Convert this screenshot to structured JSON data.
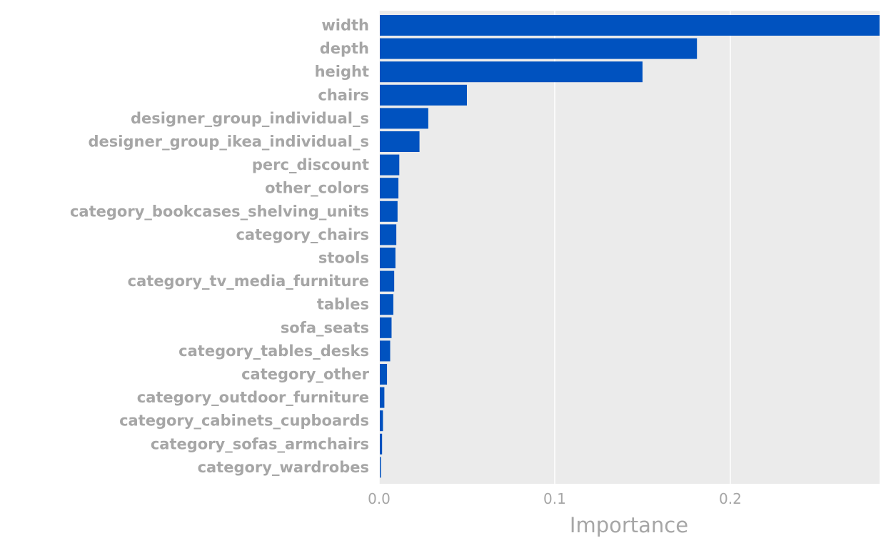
{
  "chart_data": {
    "type": "bar",
    "orientation": "horizontal",
    "xlabel": "Importance",
    "ylabel": "",
    "xlim": [
      0,
      0.285
    ],
    "xticks": [
      {
        "value": 0,
        "label": "0.0"
      },
      {
        "value": 0.1,
        "label": "0.1"
      },
      {
        "value": 0.2,
        "label": "0.2"
      }
    ],
    "grid": true,
    "categories": [
      "width",
      "depth",
      "height",
      "chairs",
      "designer_group_individual_s",
      "designer_group_ikea_individual_s",
      "perc_discount",
      "other_colors",
      "category_bookcases_shelving_units",
      "category_chairs",
      "stools",
      "category_tv_media_furniture",
      "tables",
      "sofa_seats",
      "category_tables_desks",
      "category_other",
      "category_outdoor_furniture",
      "category_cabinets_cupboards",
      "category_sofas_armchairs",
      "category_wardrobes"
    ],
    "values": [
      0.285,
      0.181,
      0.15,
      0.05,
      0.028,
      0.023,
      0.0115,
      0.011,
      0.0105,
      0.0098,
      0.0093,
      0.0086,
      0.0081,
      0.0071,
      0.0063,
      0.0045,
      0.003,
      0.0022,
      0.0017,
      0.0005
    ]
  },
  "colors": {
    "bar": "#0052bf",
    "plot_background": "#ebebeb",
    "gridline": "#ffffff",
    "text": "#a6a6a6"
  }
}
